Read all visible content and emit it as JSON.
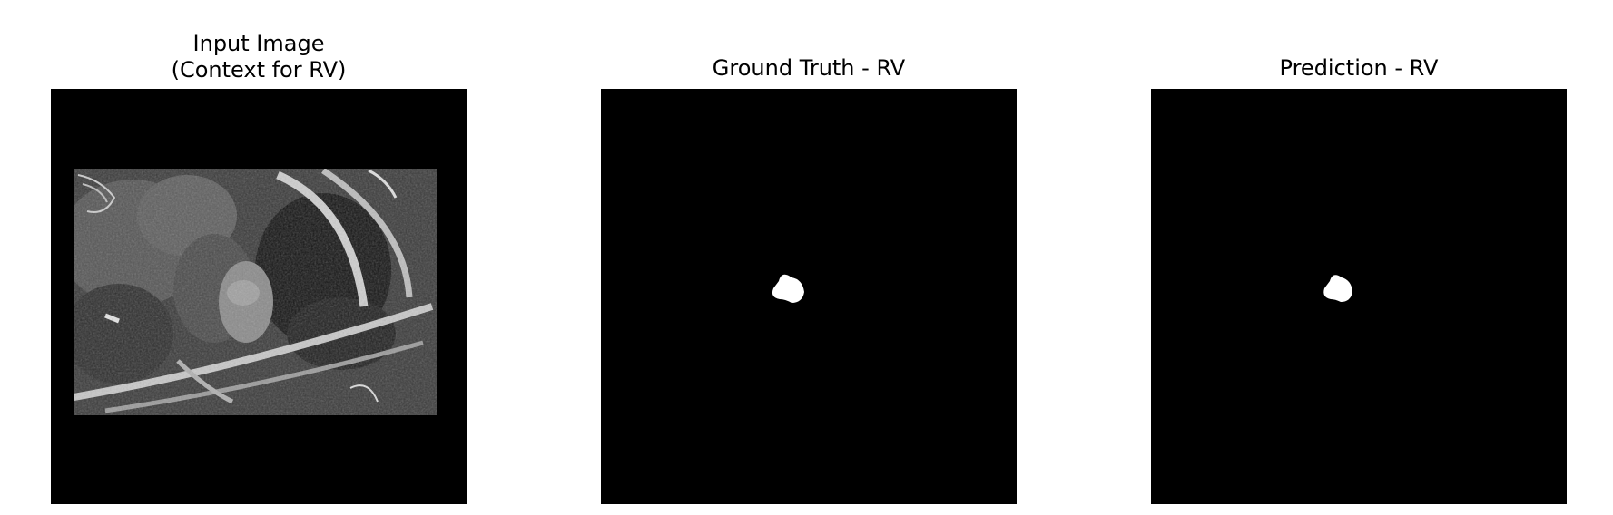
{
  "panels": [
    {
      "title_line1": "Input Image",
      "title_line2": "(Context for RV)",
      "content": "cardiac-mri-slice-grayscale"
    },
    {
      "title": "Ground Truth - RV",
      "content": "binary-mask-rv"
    },
    {
      "title": "Prediction - RV",
      "content": "binary-mask-rv"
    }
  ],
  "colors": {
    "background": "#000000",
    "mask": "#ffffff",
    "page": "#ffffff"
  }
}
